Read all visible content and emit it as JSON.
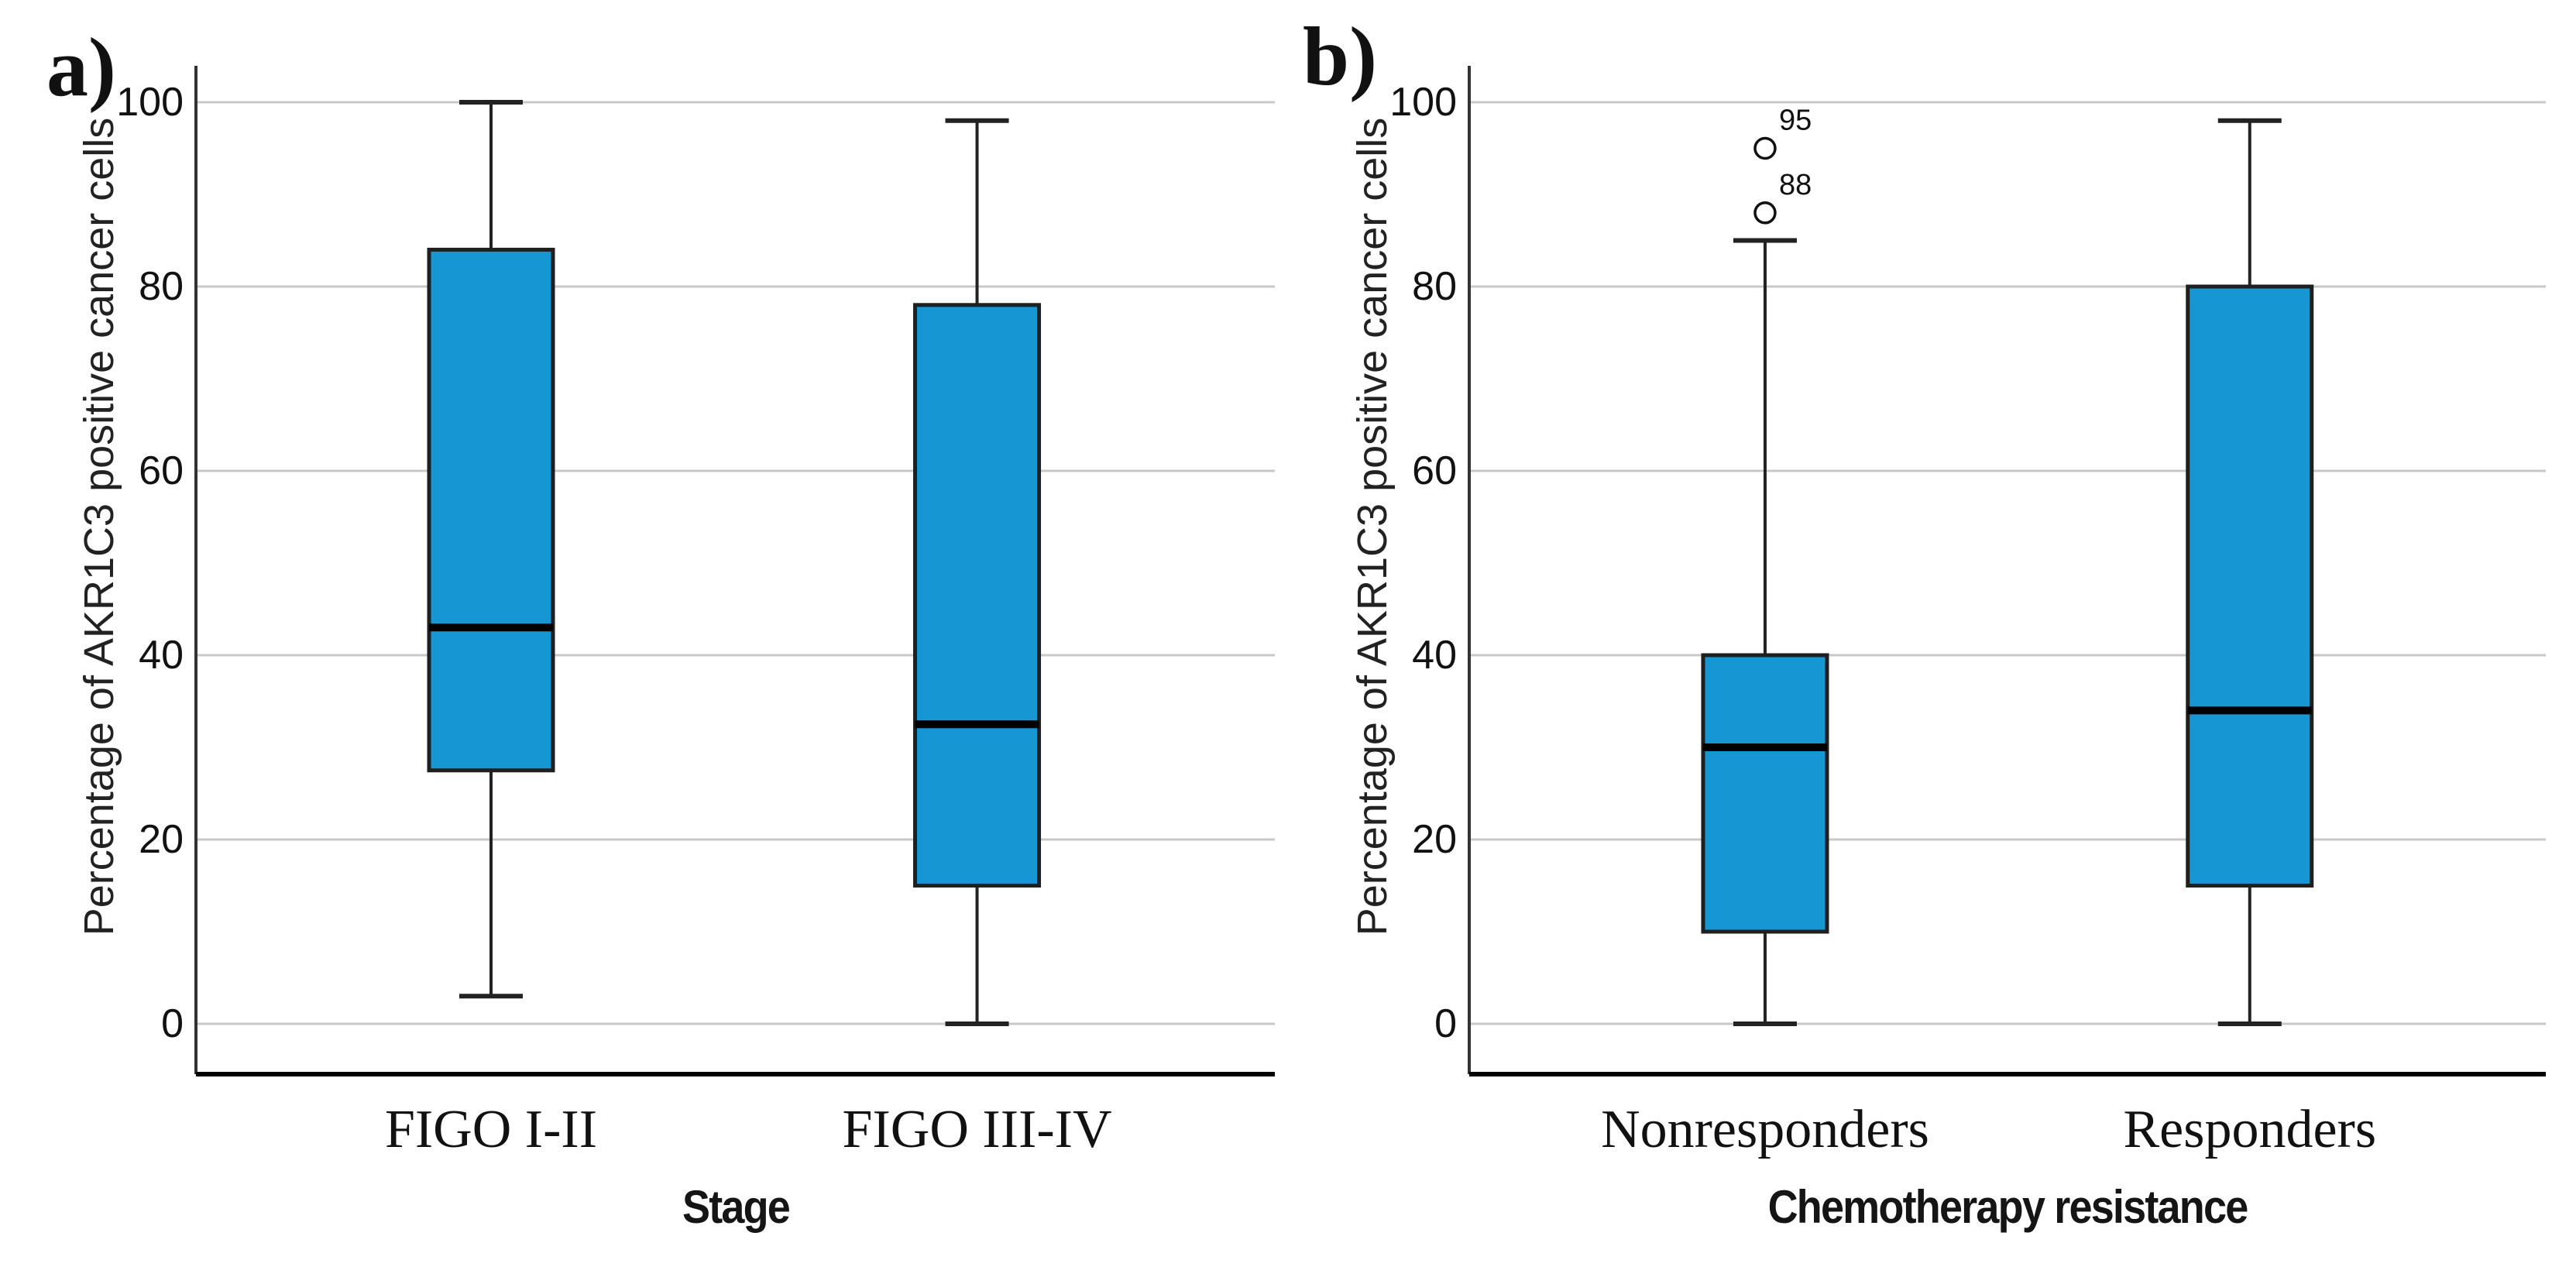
{
  "figure": {
    "background": "#ffffff",
    "panel_a_letter": "a)",
    "panel_b_letter": "b)"
  },
  "colors": {
    "box_fill": "#1697d4",
    "box_border": "#1f1f1f",
    "median_line": "#000000",
    "gridline": "#c8c8c8",
    "y_axis_line": "#333333",
    "x_axis_line": "#000000",
    "whisker": "#222222",
    "outlier_stroke": "#111111",
    "text": "#111111"
  },
  "chart_data": [
    {
      "type": "box",
      "panel_label": "a)",
      "xlabel": "Stage",
      "ylabel": "Percentage of AKR1C3 positive cancer cells",
      "ylim": [
        0,
        100
      ],
      "yticks": [
        0,
        20,
        40,
        60,
        80,
        100
      ],
      "grid": "horizontal",
      "legend": "none",
      "categories": [
        "FIGO I-II",
        "FIGO III-IV"
      ],
      "boxes": [
        {
          "category": "FIGO I-II",
          "whisker_low": 3,
          "q1": 27.5,
          "median": 43,
          "q3": 84,
          "whisker_high": 100,
          "outliers": []
        },
        {
          "category": "FIGO III-IV",
          "whisker_low": 0,
          "q1": 15,
          "median": 32.5,
          "q3": 78,
          "whisker_high": 98,
          "outliers": []
        }
      ]
    },
    {
      "type": "box",
      "panel_label": "b)",
      "xlabel": "Chemotherapy resistance",
      "ylabel": "Percentage of AKR1C3 positive cancer cells",
      "ylim": [
        0,
        100
      ],
      "yticks": [
        0,
        20,
        40,
        60,
        80,
        100
      ],
      "grid": "horizontal",
      "legend": "none",
      "categories": [
        "Nonresponders",
        "Responders"
      ],
      "boxes": [
        {
          "category": "Nonresponders",
          "whisker_low": 0,
          "q1": 10,
          "median": 30,
          "q3": 40,
          "whisker_high": 85,
          "outliers": [
            {
              "value": 95,
              "label": "95"
            },
            {
              "value": 88,
              "label": "88"
            }
          ]
        },
        {
          "category": "Responders",
          "whisker_low": 0,
          "q1": 15,
          "median": 34,
          "q3": 80,
          "whisker_high": 98,
          "outliers": []
        }
      ]
    }
  ]
}
